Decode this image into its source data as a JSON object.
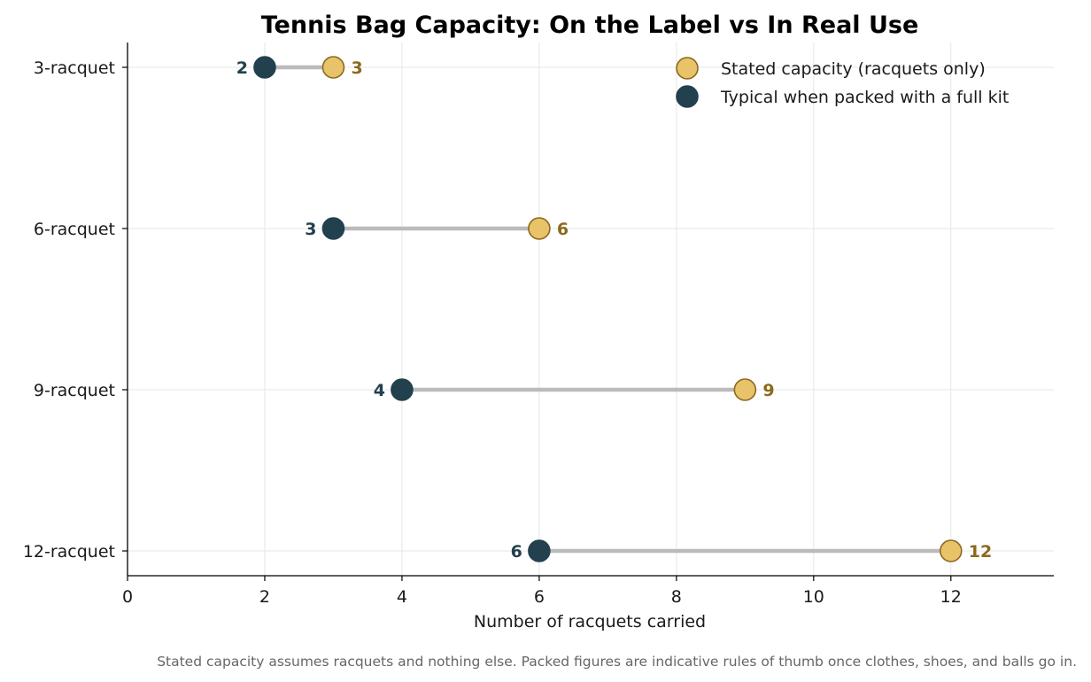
{
  "chart_data": {
    "type": "dumbbell",
    "title": "Tennis Bag Capacity: On the Label vs In Real Use",
    "xlabel": "Number of racquets carried",
    "ylabel": "",
    "xlim": [
      0,
      13.5
    ],
    "xticks": [
      0,
      2,
      4,
      6,
      8,
      10,
      12
    ],
    "grid": true,
    "legend_position": "top-right",
    "categories": [
      "3-racquet",
      "6-racquet",
      "9-racquet",
      "12-racquet"
    ],
    "series": [
      {
        "name": "Stated capacity (racquets only)",
        "values": [
          3,
          6,
          9,
          12
        ],
        "color": "#e8c36a",
        "edge_color": "#8a6a1c",
        "label_color": "#8a6a1c"
      },
      {
        "name": "Typical when packed with a full kit",
        "values": [
          2,
          3,
          4,
          6
        ],
        "color": "#22404e",
        "edge_color": "#22404e",
        "label_color": "#22404e"
      }
    ],
    "connector_color": "#bbbbbb",
    "footnote": "Stated capacity assumes racquets and nothing else. Packed figures are indicative rules of thumb once clothes, shoes, and balls go in."
  }
}
